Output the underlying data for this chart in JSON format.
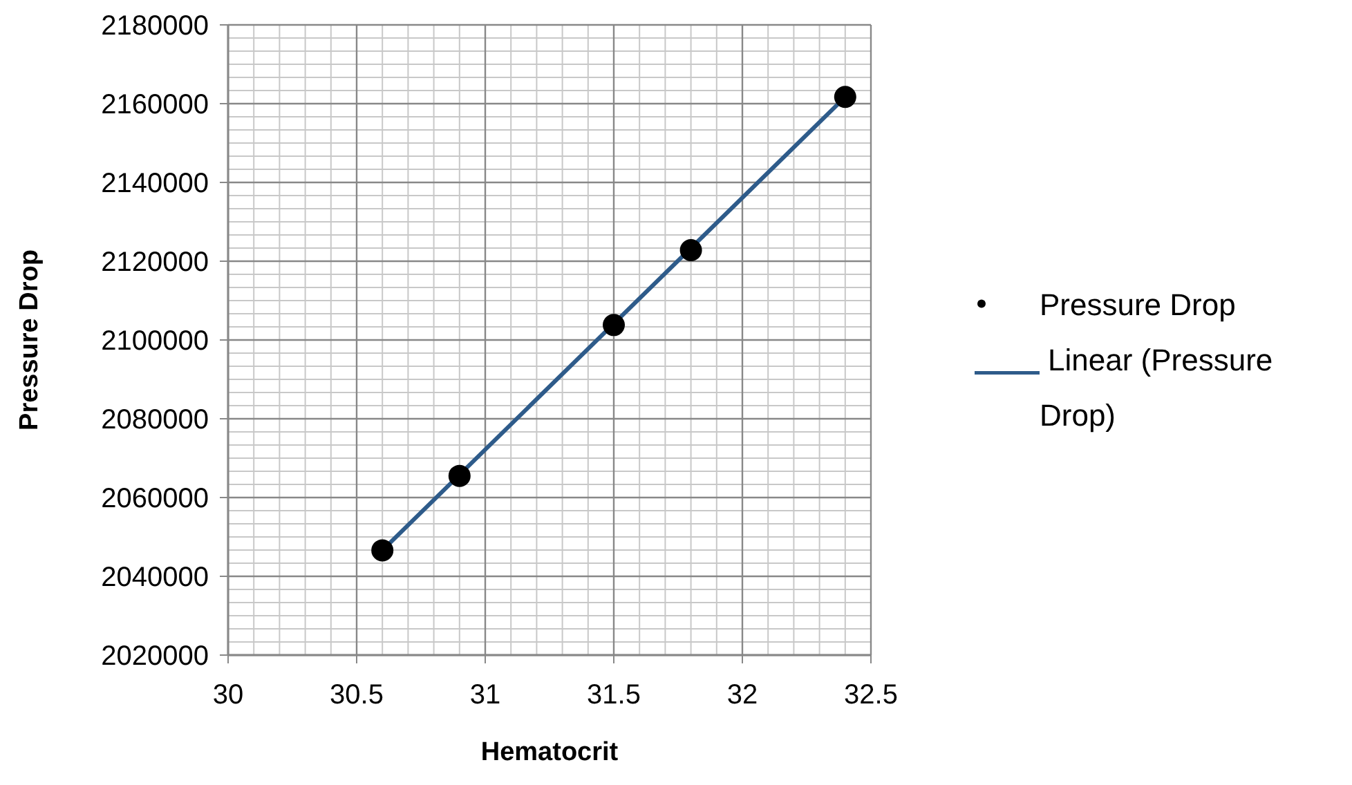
{
  "chart_data": {
    "type": "scatter",
    "xlabel": "Hematocrit",
    "ylabel": "Pressure Drop",
    "xlim": [
      30,
      32.5
    ],
    "xticks": [
      30,
      30.5,
      31,
      31.5,
      32,
      32.5
    ],
    "ylim": [
      2020000,
      2180000
    ],
    "yticks": [
      2020000,
      2040000,
      2060000,
      2080000,
      2100000,
      2120000,
      2140000,
      2160000,
      2180000
    ],
    "grid": true,
    "legend": "right",
    "series": [
      {
        "name": "Pressure Drop",
        "marker": "circle",
        "color": "#000000",
        "x": [
          30.6,
          30.9,
          31.5,
          31.8,
          32.4
        ],
        "values": [
          2046600,
          2065500,
          2103800,
          2122800,
          2161700
        ]
      },
      {
        "name": "Linear (Pressure Drop)",
        "type": "line",
        "line_style": "solid",
        "color": "#2e5b8a",
        "x": [
          30.6,
          32.4
        ],
        "values": [
          2046600,
          2161700
        ]
      }
    ]
  }
}
